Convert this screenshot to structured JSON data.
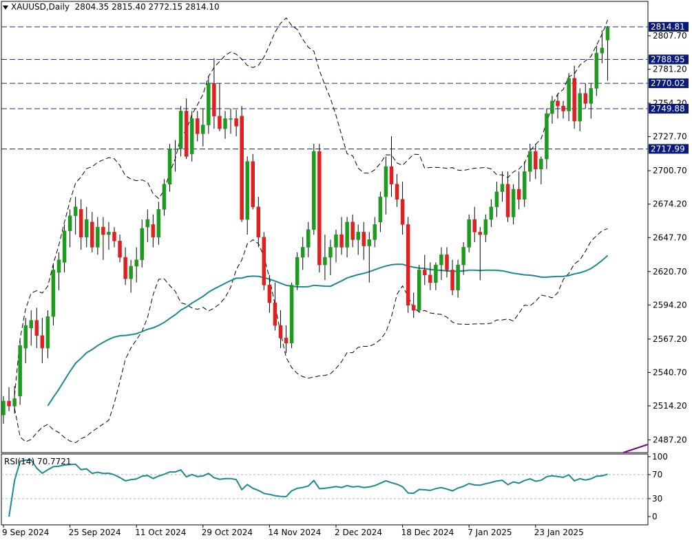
{
  "header": {
    "symbol": "XAUUSD,Daily",
    "ohlc": "2804.35 2815.40 2772.15 2814.10"
  },
  "rsi_header": {
    "label": "RSI(14) 70.7721"
  },
  "chart_data": {
    "type": "candlestick",
    "title": "XAUUSD,Daily",
    "y_ticks": [
      2807.7,
      2781.2,
      2754.2,
      2727.7,
      2700.7,
      2674.2,
      2647.7,
      2620.7,
      2594.2,
      2567.2,
      2540.7,
      2514.2,
      2487.2
    ],
    "price_lines": [
      2814.81,
      2788.95,
      2770.02,
      2749.88,
      2717.99
    ],
    "x_labels": [
      "9 Sep 2024",
      "25 Sep 2024",
      "11 Oct 2024",
      "29 Oct 2024",
      "14 Nov 2024",
      "2 Dec 2024",
      "18 Dec 2024",
      "7 Jan 2025",
      "23 Jan 2025"
    ],
    "x_label_bars": [
      0,
      12,
      24,
      36,
      48,
      60,
      72,
      84,
      96
    ],
    "candles": [
      [
        2507,
        2522,
        2500,
        2518
      ],
      [
        2518,
        2529,
        2510,
        2514
      ],
      [
        2514,
        2530,
        2508,
        2520
      ],
      [
        2522,
        2566,
        2515,
        2562
      ],
      [
        2560,
        2584,
        2548,
        2578
      ],
      [
        2576,
        2590,
        2562,
        2582
      ],
      [
        2582,
        2592,
        2560,
        2570
      ],
      [
        2570,
        2584,
        2548,
        2560
      ],
      [
        2560,
        2590,
        2552,
        2585
      ],
      [
        2585,
        2626,
        2578,
        2622
      ],
      [
        2620,
        2636,
        2606,
        2630
      ],
      [
        2628,
        2658,
        2620,
        2653
      ],
      [
        2653,
        2670,
        2640,
        2665
      ],
      [
        2665,
        2680,
        2650,
        2672
      ],
      [
        2670,
        2678,
        2638,
        2648
      ],
      [
        2648,
        2672,
        2640,
        2662
      ],
      [
        2660,
        2668,
        2636,
        2640
      ],
      [
        2640,
        2664,
        2634,
        2656
      ],
      [
        2656,
        2664,
        2630,
        2650
      ],
      [
        2650,
        2660,
        2638,
        2652
      ],
      [
        2652,
        2656,
        2640,
        2645
      ],
      [
        2645,
        2650,
        2628,
        2632
      ],
      [
        2632,
        2640,
        2610,
        2615
      ],
      [
        2615,
        2630,
        2604,
        2625
      ],
      [
        2625,
        2640,
        2612,
        2630
      ],
      [
        2630,
        2662,
        2624,
        2655
      ],
      [
        2656,
        2670,
        2644,
        2662
      ],
      [
        2658,
        2666,
        2640,
        2648
      ],
      [
        2648,
        2676,
        2642,
        2670
      ],
      [
        2670,
        2694,
        2665,
        2690
      ],
      [
        2690,
        2722,
        2684,
        2718
      ],
      [
        2718,
        2725,
        2700,
        2718
      ],
      [
        2718,
        2752,
        2712,
        2748
      ],
      [
        2748,
        2758,
        2710,
        2712
      ],
      [
        2714,
        2748,
        2708,
        2742
      ],
      [
        2742,
        2748,
        2724,
        2730
      ],
      [
        2730,
        2750,
        2720,
        2737
      ],
      [
        2737,
        2776,
        2730,
        2770
      ],
      [
        2770,
        2790,
        2734,
        2744
      ],
      [
        2744,
        2770,
        2732,
        2734
      ],
      [
        2734,
        2748,
        2726,
        2742
      ],
      [
        2742,
        2750,
        2730,
        2742
      ],
      [
        2742,
        2749,
        2728,
        2736
      ],
      [
        2744,
        2752,
        2660,
        2662
      ],
      [
        2662,
        2712,
        2650,
        2708
      ],
      [
        2708,
        2714,
        2670,
        2672
      ],
      [
        2672,
        2680,
        2640,
        2648
      ],
      [
        2648,
        2652,
        2606,
        2610
      ],
      [
        2610,
        2618,
        2588,
        2596
      ],
      [
        2596,
        2612,
        2574,
        2578
      ],
      [
        2578,
        2590,
        2560,
        2568
      ],
      [
        2568,
        2578,
        2556,
        2564
      ],
      [
        2564,
        2612,
        2560,
        2610
      ],
      [
        2610,
        2636,
        2606,
        2632
      ],
      [
        2632,
        2648,
        2622,
        2640
      ],
      [
        2640,
        2660,
        2632,
        2654
      ],
      [
        2654,
        2722,
        2650,
        2716
      ],
      [
        2716,
        2722,
        2620,
        2626
      ],
      [
        2626,
        2650,
        2614,
        2632
      ],
      [
        2632,
        2646,
        2618,
        2640
      ],
      [
        2640,
        2654,
        2628,
        2650
      ],
      [
        2650,
        2664,
        2634,
        2640
      ],
      [
        2640,
        2664,
        2632,
        2660
      ],
      [
        2660,
        2666,
        2640,
        2646
      ],
      [
        2646,
        2658,
        2634,
        2652
      ],
      [
        2652,
        2660,
        2630,
        2641
      ],
      [
        2641,
        2652,
        2612,
        2646
      ],
      [
        2646,
        2664,
        2640,
        2658
      ],
      [
        2660,
        2684,
        2652,
        2680
      ],
      [
        2680,
        2712,
        2666,
        2704
      ],
      [
        2704,
        2728,
        2680,
        2690
      ],
      [
        2690,
        2698,
        2672,
        2678
      ],
      [
        2678,
        2692,
        2650,
        2658
      ],
      [
        2658,
        2664,
        2588,
        2594
      ],
      [
        2594,
        2604,
        2584,
        2590
      ],
      [
        2590,
        2626,
        2588,
        2622
      ],
      [
        2622,
        2634,
        2610,
        2618
      ],
      [
        2618,
        2628,
        2606,
        2612
      ],
      [
        2612,
        2628,
        2606,
        2626
      ],
      [
        2626,
        2640,
        2614,
        2634
      ],
      [
        2634,
        2640,
        2616,
        2622
      ],
      [
        2622,
        2630,
        2602,
        2606
      ],
      [
        2606,
        2630,
        2600,
        2626
      ],
      [
        2626,
        2644,
        2618,
        2640
      ],
      [
        2640,
        2666,
        2636,
        2662
      ],
      [
        2662,
        2672,
        2644,
        2652
      ],
      [
        2652,
        2656,
        2614,
        2650
      ],
      [
        2650,
        2666,
        2644,
        2662
      ],
      [
        2662,
        2678,
        2656,
        2672
      ],
      [
        2672,
        2692,
        2664,
        2684
      ],
      [
        2684,
        2700,
        2676,
        2690
      ],
      [
        2690,
        2700,
        2660,
        2664
      ],
      [
        2664,
        2690,
        2658,
        2686
      ],
      [
        2686,
        2700,
        2670,
        2678
      ],
      [
        2678,
        2708,
        2672,
        2700
      ],
      [
        2700,
        2722,
        2692,
        2716
      ],
      [
        2716,
        2722,
        2694,
        2702
      ],
      [
        2702,
        2712,
        2690,
        2710
      ],
      [
        2710,
        2750,
        2702,
        2746
      ],
      [
        2746,
        2760,
        2738,
        2756
      ],
      [
        2756,
        2762,
        2742,
        2752
      ],
      [
        2752,
        2756,
        2742,
        2748
      ],
      [
        2748,
        2778,
        2740,
        2774
      ],
      [
        2774,
        2784,
        2734,
        2740
      ],
      [
        2740,
        2766,
        2732,
        2762
      ],
      [
        2762,
        2770,
        2750,
        2754
      ],
      [
        2754,
        2770,
        2742,
        2766
      ],
      [
        2766,
        2800,
        2760,
        2794
      ],
      [
        2794,
        2812,
        2786,
        2798
      ],
      [
        2804.35,
        2815.4,
        2772.15,
        2814.1
      ]
    ],
    "rsi": {
      "label": "RSI(14) 70.7721",
      "levels": [
        100,
        70,
        30,
        0
      ],
      "dashed_levels": [
        70,
        30
      ],
      "last": 70.7721
    }
  }
}
